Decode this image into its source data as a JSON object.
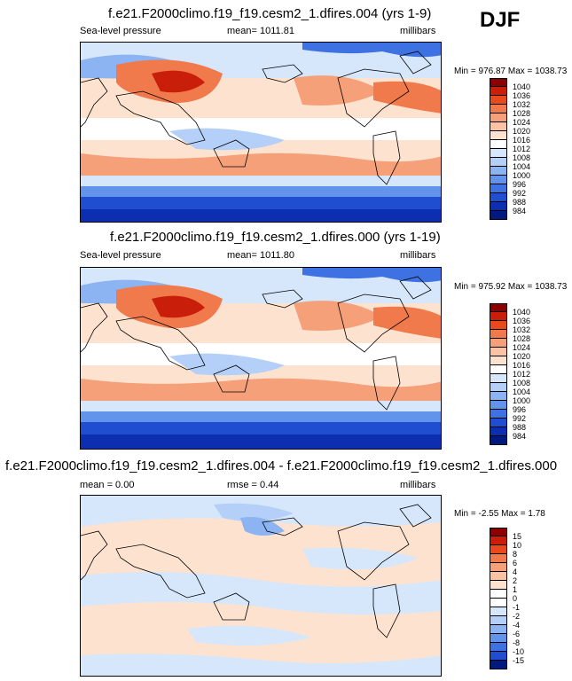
{
  "season": "DJF",
  "panels": [
    {
      "title": "f.e21.F2000climo.f19_f19.cesm2_1.dfires.004 (yrs 1-9)",
      "left_label": "Sea-level pressure",
      "center_label": "mean= 1011.81",
      "right_label": "millibars",
      "minmax": "Min = 976.87 Max = 1038.73",
      "colorbar_levels": [
        "1040",
        "1036",
        "1032",
        "1028",
        "1024",
        "1020",
        "1016",
        "1012",
        "1008",
        "1004",
        "1000",
        "996",
        "992",
        "988",
        "984"
      ],
      "colorbar_colors": [
        "#8b0000",
        "#c81e0a",
        "#e8491d",
        "#f07a4b",
        "#f6a07a",
        "#fbc3a3",
        "#fde3cf",
        "#ffffff",
        "#d6e6fb",
        "#b4d0f8",
        "#8cb3f2",
        "#6394ec",
        "#3e72e2",
        "#1f4fd0",
        "#0b2fb0",
        "#001a80"
      ]
    },
    {
      "title": "f.e21.F2000climo.f19_f19.cesm2_1.dfires.000 (yrs 1-19)",
      "left_label": "Sea-level pressure",
      "center_label": "mean= 1011.80",
      "right_label": "millibars",
      "minmax": "Min = 975.92 Max = 1038.73",
      "colorbar_levels": [
        "1040",
        "1036",
        "1032",
        "1028",
        "1024",
        "1020",
        "1016",
        "1012",
        "1008",
        "1004",
        "1000",
        "996",
        "992",
        "988",
        "984"
      ],
      "colorbar_colors": [
        "#8b0000",
        "#c81e0a",
        "#e8491d",
        "#f07a4b",
        "#f6a07a",
        "#fbc3a3",
        "#fde3cf",
        "#ffffff",
        "#d6e6fb",
        "#b4d0f8",
        "#8cb3f2",
        "#6394ec",
        "#3e72e2",
        "#1f4fd0",
        "#0b2fb0",
        "#001a80"
      ]
    },
    {
      "title": "f.e21.F2000climo.f19_f19.cesm2_1.dfires.004 - f.e21.F2000climo.f19_f19.cesm2_1.dfires.000",
      "left_label": "mean =   0.00",
      "center_label": "rmse =   0.44",
      "right_label": "millibars",
      "minmax": "Min =  -2.55 Max =   1.78",
      "colorbar_levels": [
        "15",
        "10",
        "8",
        "6",
        "4",
        "2",
        "1",
        "0",
        "-1",
        "-2",
        "-4",
        "-6",
        "-8",
        "-10",
        "-15"
      ],
      "colorbar_colors": [
        "#8b0000",
        "#c81e0a",
        "#e8491d",
        "#f07a4b",
        "#f6a07a",
        "#fbc3a3",
        "#fde3cf",
        "#ffffff",
        "#ffffff",
        "#d6e6fb",
        "#b4d0f8",
        "#8cb3f2",
        "#6394ec",
        "#3e72e2",
        "#1f4fd0",
        "#001a80"
      ]
    }
  ]
}
